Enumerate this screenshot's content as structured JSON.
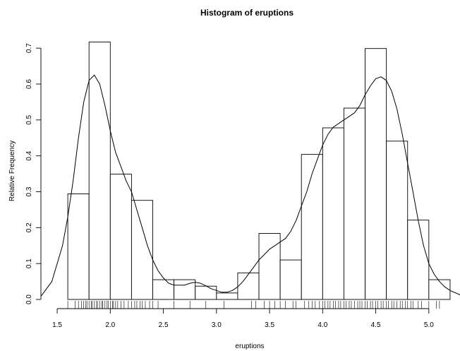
{
  "chart_data": {
    "type": "bar",
    "title": "Histogram of eruptions",
    "xlabel": "eruptions",
    "ylabel": "Relative Frequency",
    "xlim": [
      1.4,
      5.3
    ],
    "ylim": [
      0,
      0.72
    ],
    "x_ticks": [
      "1.5",
      "2.0",
      "2.5",
      "3.0",
      "3.5",
      "4.0",
      "4.5",
      "5.0"
    ],
    "x_tick_values": [
      1.5,
      2.0,
      2.5,
      3.0,
      3.5,
      4.0,
      4.5,
      5.0
    ],
    "y_ticks": [
      "0.0",
      "0.1",
      "0.2",
      "0.3",
      "0.4",
      "0.5",
      "0.6",
      "0.7"
    ],
    "y_tick_values": [
      0.0,
      0.1,
      0.2,
      0.3,
      0.4,
      0.5,
      0.6,
      0.7
    ],
    "bin_edges": [
      1.6,
      1.8,
      2.0,
      2.2,
      2.4,
      2.6,
      2.8,
      3.0,
      3.2,
      3.4,
      3.6,
      3.8,
      4.0,
      4.2,
      4.4,
      4.6,
      4.8,
      5.0,
      5.2
    ],
    "values": [
      0.294,
      0.717,
      0.349,
      0.276,
      0.055,
      0.055,
      0.037,
      0.018,
      0.074,
      0.184,
      0.11,
      0.404,
      0.478,
      0.533,
      0.699,
      0.441,
      0.221,
      0.055
    ],
    "density_curve": {
      "x": [
        1.35,
        1.45,
        1.55,
        1.6,
        1.65,
        1.7,
        1.75,
        1.8,
        1.85,
        1.9,
        1.95,
        2.0,
        2.05,
        2.1,
        2.15,
        2.2,
        2.25,
        2.3,
        2.35,
        2.4,
        2.45,
        2.5,
        2.55,
        2.6,
        2.65,
        2.7,
        2.75,
        2.8,
        2.85,
        2.9,
        2.95,
        3.0,
        3.05,
        3.1,
        3.15,
        3.2,
        3.25,
        3.3,
        3.35,
        3.4,
        3.45,
        3.5,
        3.55,
        3.6,
        3.65,
        3.7,
        3.75,
        3.8,
        3.85,
        3.9,
        3.95,
        4.0,
        4.05,
        4.1,
        4.15,
        4.2,
        4.25,
        4.3,
        4.35,
        4.4,
        4.45,
        4.5,
        4.55,
        4.6,
        4.65,
        4.7,
        4.75,
        4.8,
        4.85,
        4.9,
        4.95,
        5.0,
        5.05,
        5.1,
        5.15,
        5.2,
        5.3,
        5.4
      ],
      "y": [
        0.01,
        0.05,
        0.15,
        0.23,
        0.33,
        0.45,
        0.55,
        0.61,
        0.625,
        0.6,
        0.54,
        0.47,
        0.41,
        0.37,
        0.33,
        0.3,
        0.25,
        0.2,
        0.15,
        0.11,
        0.08,
        0.06,
        0.045,
        0.04,
        0.04,
        0.04,
        0.045,
        0.048,
        0.045,
        0.038,
        0.03,
        0.025,
        0.02,
        0.02,
        0.025,
        0.035,
        0.05,
        0.07,
        0.09,
        0.11,
        0.125,
        0.14,
        0.15,
        0.16,
        0.17,
        0.19,
        0.22,
        0.26,
        0.3,
        0.35,
        0.39,
        0.43,
        0.46,
        0.48,
        0.49,
        0.5,
        0.51,
        0.52,
        0.54,
        0.57,
        0.595,
        0.615,
        0.62,
        0.61,
        0.58,
        0.53,
        0.46,
        0.38,
        0.3,
        0.22,
        0.15,
        0.1,
        0.07,
        0.05,
        0.035,
        0.025,
        0.012,
        0.004
      ]
    },
    "rug": [
      1.6,
      1.67,
      1.7,
      1.73,
      1.75,
      1.77,
      1.78,
      1.8,
      1.82,
      1.83,
      1.85,
      1.87,
      1.88,
      1.9,
      1.92,
      1.93,
      1.95,
      1.97,
      1.98,
      2.0,
      2.02,
      2.03,
      2.05,
      2.07,
      2.1,
      2.13,
      2.17,
      2.2,
      2.23,
      2.25,
      2.28,
      2.3,
      2.33,
      2.37,
      2.4,
      2.45,
      2.6,
      2.75,
      2.9,
      3.07,
      3.33,
      3.37,
      3.45,
      3.5,
      3.55,
      3.6,
      3.65,
      3.72,
      3.75,
      3.83,
      3.87,
      3.9,
      3.93,
      3.97,
      4.0,
      4.02,
      4.05,
      4.07,
      4.1,
      4.12,
      4.15,
      4.17,
      4.2,
      4.22,
      4.25,
      4.27,
      4.3,
      4.33,
      4.35,
      4.37,
      4.4,
      4.42,
      4.45,
      4.47,
      4.5,
      4.52,
      4.55,
      4.57,
      4.6,
      4.62,
      4.65,
      4.67,
      4.7,
      4.73,
      4.75,
      4.78,
      4.8,
      4.83,
      4.85,
      4.9,
      4.93,
      5.0,
      5.07,
      5.1
    ],
    "grid": false,
    "legend": "none"
  }
}
